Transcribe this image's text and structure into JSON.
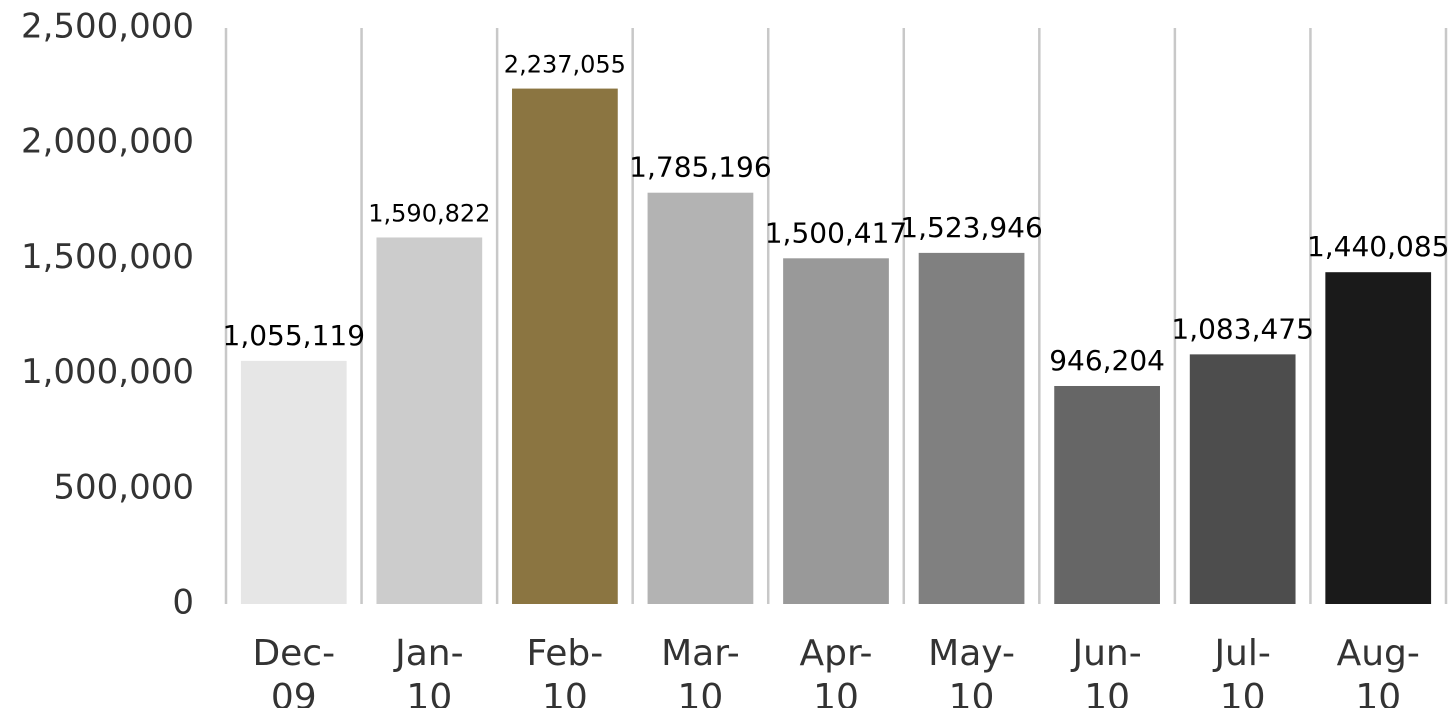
{
  "chart_data": {
    "type": "bar",
    "title": "",
    "xlabel": "",
    "ylabel": "",
    "ylim": [
      0,
      2500000
    ],
    "yticks": [
      0,
      500000,
      1000000,
      1500000,
      2000000,
      2500000
    ],
    "ytick_labels": [
      "0",
      "500,000",
      "1,000,000",
      "1,500,000",
      "2,000,000",
      "2,500,000"
    ],
    "categories": [
      "Dec-09",
      "Jan-10",
      "Feb-10",
      "Mar-10",
      "Apr-10",
      "May-10",
      "Jun-10",
      "Jul-10",
      "Aug-10"
    ],
    "category_lines": [
      [
        "Dec-",
        "09"
      ],
      [
        "Jan-",
        "10"
      ],
      [
        "Feb-",
        "10"
      ],
      [
        "Mar-",
        "10"
      ],
      [
        "Apr-",
        "10"
      ],
      [
        "May-",
        "10"
      ],
      [
        "Jun-",
        "10"
      ],
      [
        "Jul-",
        "10"
      ],
      [
        "Aug-",
        "10"
      ]
    ],
    "values": [
      1055119,
      1590822,
      2237055,
      1785196,
      1500417,
      1523946,
      946204,
      1083475,
      1440085
    ],
    "value_labels": [
      "1,055,119",
      "1,590,822",
      "2,237,055",
      "1,785,196",
      "1,500,417",
      "1,523,946",
      "946,204",
      "1,083,475",
      "1,440,085"
    ],
    "bar_colors": [
      "#e6e6e6",
      "#cccccc",
      "#8b7541",
      "#b3b3b3",
      "#999999",
      "#808080",
      "#666666",
      "#4d4d4d",
      "#1a1a1a"
    ],
    "grid": "vertical separators between categories",
    "legend": "none"
  }
}
